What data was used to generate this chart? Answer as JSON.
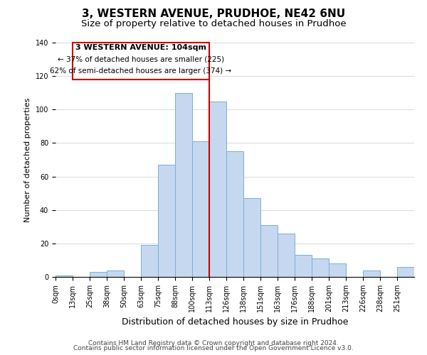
{
  "title": "3, WESTERN AVENUE, PRUDHOE, NE42 6NU",
  "subtitle": "Size of property relative to detached houses in Prudhoe",
  "xlabel": "Distribution of detached houses by size in Prudhoe",
  "ylabel": "Number of detached properties",
  "bar_labels": [
    "0sqm",
    "13sqm",
    "25sqm",
    "38sqm",
    "50sqm",
    "63sqm",
    "75sqm",
    "88sqm",
    "100sqm",
    "113sqm",
    "126sqm",
    "138sqm",
    "151sqm",
    "163sqm",
    "176sqm",
    "188sqm",
    "201sqm",
    "213sqm",
    "226sqm",
    "238sqm",
    "251sqm"
  ],
  "bar_values": [
    1,
    0,
    3,
    4,
    0,
    19,
    67,
    110,
    81,
    105,
    75,
    47,
    31,
    26,
    13,
    11,
    8,
    0,
    4,
    0,
    6
  ],
  "bar_color": "#c5d8f0",
  "bar_edge_color": "#7bafd4",
  "vline_color": "#cc0000",
  "vline_x_index": 9,
  "annotation_title": "3 WESTERN AVENUE: 104sqm",
  "annotation_line1": "← 37% of detached houses are smaller (225)",
  "annotation_line2": "62% of semi-detached houses are larger (374) →",
  "annotation_box_edge": "#cc0000",
  "ylim": [
    0,
    140
  ],
  "yticks": [
    0,
    20,
    40,
    60,
    80,
    100,
    120,
    140
  ],
  "footer1": "Contains HM Land Registry data © Crown copyright and database right 2024.",
  "footer2": "Contains public sector information licensed under the Open Government Licence v3.0.",
  "background_color": "#ffffff",
  "title_fontsize": 11,
  "subtitle_fontsize": 9.5,
  "ylabel_fontsize": 8,
  "xlabel_fontsize": 9,
  "tick_fontsize": 7,
  "footer_fontsize": 6.5
}
